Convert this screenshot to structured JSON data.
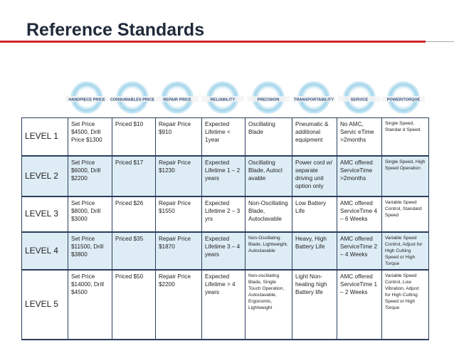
{
  "header": {
    "title": "Reference Standards"
  },
  "icons": [
    "HANDPIECE PRICE",
    "CONSUMABLES PRICE",
    "REPAIR PRICE",
    "RELIABILITY",
    "PRECISION",
    "TRANSPORTABILITY",
    "SERVICE",
    "POWER/TORQUE"
  ],
  "table": {
    "rows": [
      [
        "LEVEL 1",
        "Set Price $4500, Drill Price $1300",
        "Priced $10",
        "Repair Price $910",
        "Expected Lifetime < 1year",
        "Oscillating Blade",
        "Pneumatic & additional equipment",
        "No AMC, Servic eTime >2months",
        "Single Speed, Standar d Speed"
      ],
      [
        "LEVEL 2",
        "Set Price $6000, Drill $2200",
        "Priced $17",
        "Repair Price $1230",
        "Expected Lifetime 1 – 2 years",
        "Oscillating Blade, Autocl avable",
        "Power cord w/ separate driving unit option only",
        "AMC offered ServiceTime >2months",
        "Single Speed, High Speed Operation"
      ],
      [
        "LEVEL 3",
        "Set Price $8000, Drill $3000",
        "Priced $26",
        "Repair Price $1550",
        "Expected Lifetime 2 – 3 yrs",
        "Non-Oscillating Blade, Autoclavable",
        "Low Battery Life",
        "AMC offered ServiceTime 4 – 6 Weeks",
        "Variable Speed Control, Standard Speed"
      ],
      [
        "LEVEL 4",
        "Set Price $11500, Drill $3800",
        "Priced $35",
        "Repair Price $1870",
        "Expected Lifetime 3 – 4 years",
        "Non-Oscillating Blade, Lightweight, Autoclavable",
        "Heavy, High Battery Life",
        "AMC offered ServiceTime 2 – 4 Weeks",
        "Variable Speed Control, Adjust for High Cutting Speed or High Torque"
      ],
      [
        "LEVEL 5",
        "Set Price $14000, Drill $4500",
        "Priced $50",
        "Repair Price $2200",
        "Expected Lifetime > 4 years",
        "Non-oscillating Blade, Single Touch Operation, Autoclavable, Ergonomic, Lightweight",
        "Light Non-heating high Battery life",
        "AMC offered ServiceTime 1 – 2 Weeks",
        "Variable Speed Control, Low Vibration, Adjust for High Cutting Speed or High Torque"
      ]
    ]
  }
}
